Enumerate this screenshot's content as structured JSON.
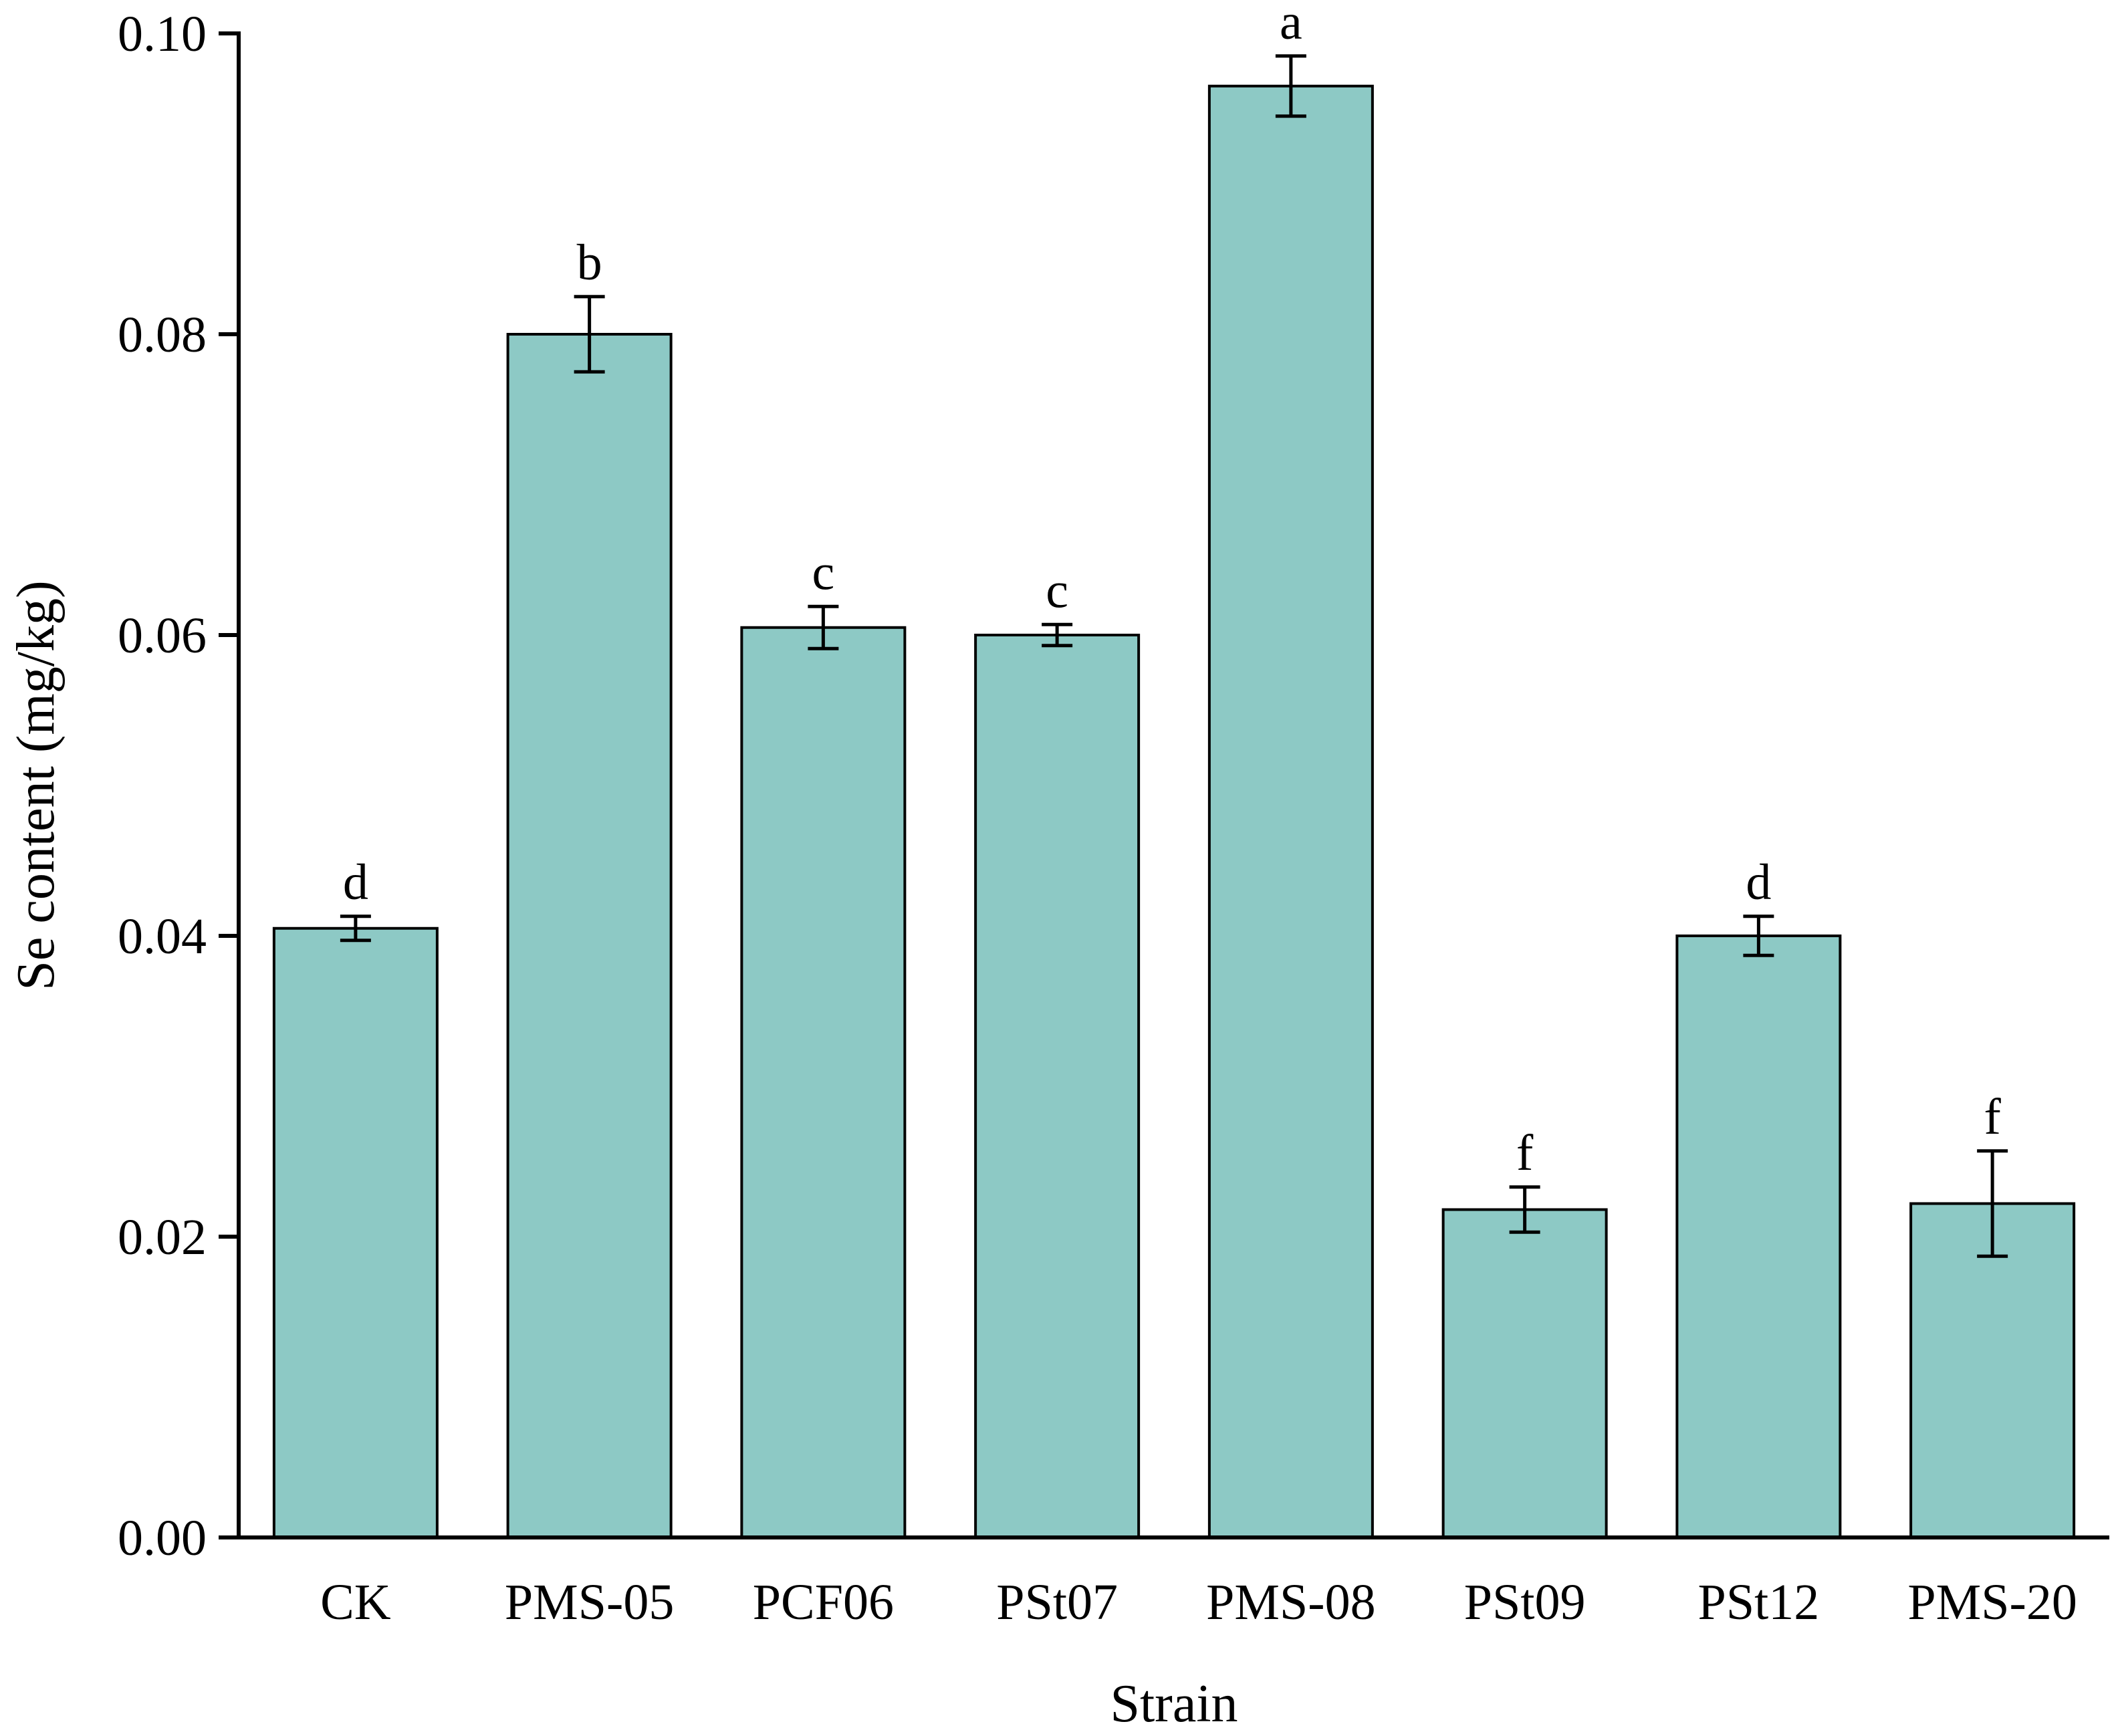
{
  "chart_data": {
    "type": "bar",
    "title": "",
    "xlabel": "Strain",
    "ylabel": "Se content (mg/kg)",
    "ylim": [
      0,
      0.1
    ],
    "yticks": [
      "0.00",
      "0.02",
      "0.04",
      "0.06",
      "0.08",
      "0.10"
    ],
    "grid": false,
    "legend": "none",
    "bar_color": "#8dc9c5",
    "categories": [
      "CK",
      "PMS-05",
      "PCF06",
      "PSt07",
      "PMS-08",
      "PSt09",
      "PSt12",
      "PMS-20"
    ],
    "values": [
      0.0405,
      0.08,
      0.0605,
      0.06,
      0.0965,
      0.0218,
      0.04,
      0.0222
    ],
    "errors": [
      0.0008,
      0.0025,
      0.0014,
      0.0007,
      0.002,
      0.0015,
      0.0013,
      0.0035
    ],
    "significance": [
      "d",
      "b",
      "c",
      "c",
      "a",
      "f",
      "d",
      "f"
    ]
  }
}
